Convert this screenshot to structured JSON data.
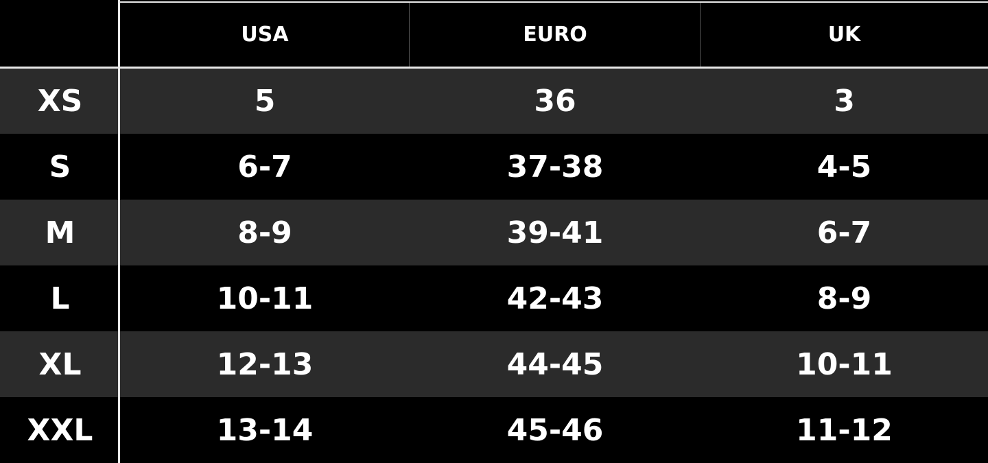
{
  "table": {
    "columns": [
      "USA",
      "EURO",
      "UK"
    ],
    "rows": [
      [
        "XS",
        "5",
        "36",
        "3"
      ],
      [
        "S",
        "6-7",
        "37-38",
        "4-5"
      ],
      [
        "M",
        "8-9",
        "39-41",
        "6-7"
      ],
      [
        "L",
        "10-11",
        "42-43",
        "8-9"
      ],
      [
        "XL",
        "12-13",
        "44-45",
        "10-11"
      ],
      [
        "XXL",
        "13-14",
        "45-46",
        "11-12"
      ]
    ]
  }
}
